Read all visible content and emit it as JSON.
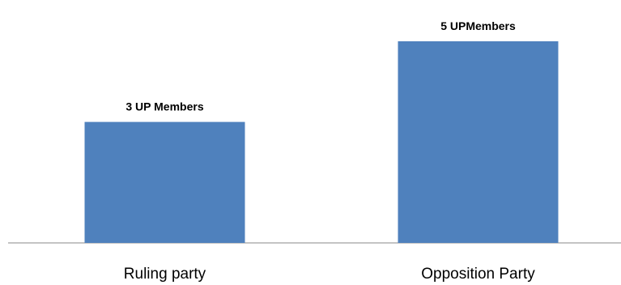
{
  "chart_data": {
    "type": "bar",
    "categories": [
      "Ruling party",
      "Opposition Party"
    ],
    "values": [
      3,
      5
    ],
    "data_labels": [
      "3 UP Members",
      "5 UPMembers"
    ],
    "title": "",
    "xlabel": "",
    "ylabel": "",
    "ylim": [
      0,
      5
    ],
    "grid": false,
    "legend": "none",
    "bar_color": "#4f81bd",
    "axis_color": "#888888"
  }
}
